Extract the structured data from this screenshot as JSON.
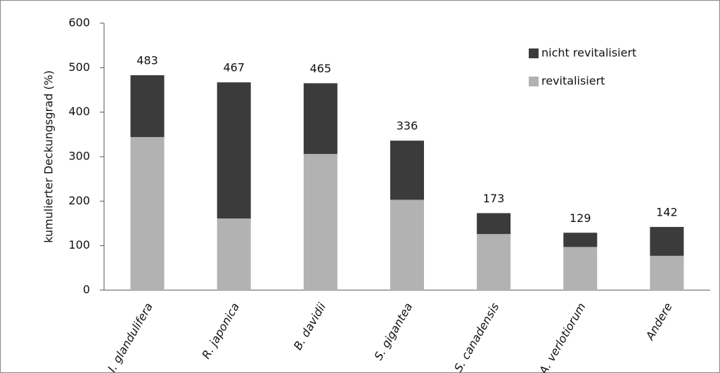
{
  "chart_data": {
    "type": "stacked-bar",
    "y_label": "kumulierter Deckungsgrad (%)",
    "categories": [
      "I. glandulifera",
      "R. japonica",
      "B. davidii",
      "S. gigantea",
      "S. canadensis",
      "A. verlotiorum",
      "Andere"
    ],
    "series": [
      {
        "name": "revitalisiert",
        "color": "#b2b2b2",
        "values": [
          344,
          161,
          306,
          203,
          126,
          97,
          77
        ]
      },
      {
        "name": "nicht revitalisiert",
        "color": "#3b3b3b",
        "values": [
          139,
          306,
          159,
          133,
          47,
          32,
          65
        ]
      }
    ],
    "total_labels": [
      483,
      467,
      465,
      336,
      173,
      129,
      142
    ],
    "ylim": [
      0,
      600
    ],
    "yticks": [
      0,
      100,
      200,
      300,
      400,
      500,
      600
    ],
    "legend": "top-right",
    "grid": false
  }
}
